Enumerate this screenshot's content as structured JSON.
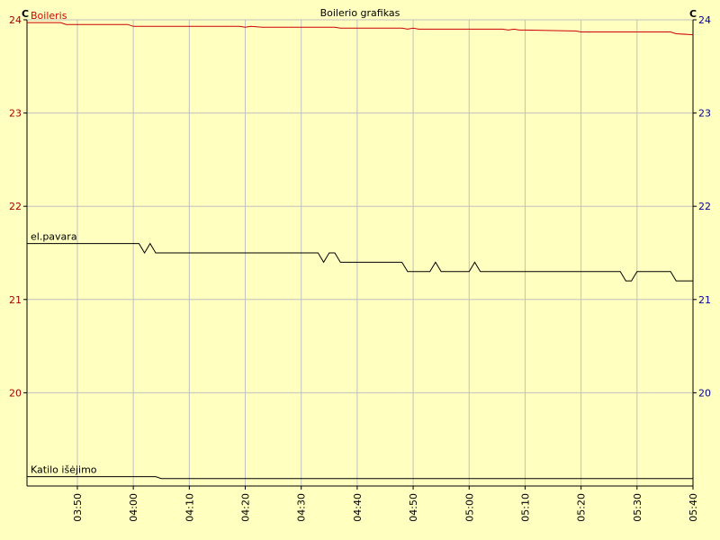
{
  "chart_data": {
    "type": "line",
    "title": "Boilerio grafikas",
    "y_unit_left": "C",
    "y_unit_right": "C",
    "xlim": [
      "03:41",
      "05:40"
    ],
    "xticks": [
      "03:50",
      "04:00",
      "04:10",
      "04:20",
      "04:30",
      "04:40",
      "04:50",
      "05:00",
      "05:10",
      "05:20",
      "05:30",
      "05:40"
    ],
    "ylim": [
      19,
      24
    ],
    "yticks": [
      20,
      21,
      22,
      23,
      24
    ],
    "grid": true,
    "series": [
      {
        "name": "Boileris",
        "color": "#cc0000",
        "x": [
          "03:41",
          "03:47",
          "03:48",
          "03:59",
          "04:00",
          "04:19",
          "04:20",
          "04:21",
          "04:23",
          "04:36",
          "04:37",
          "04:48",
          "04:49",
          "04:50",
          "04:51",
          "05:06",
          "05:07",
          "05:08",
          "05:09",
          "05:10",
          "05:19",
          "05:20",
          "05:36",
          "05:37",
          "05:40"
        ],
        "values": [
          23.97,
          23.97,
          23.95,
          23.95,
          23.93,
          23.93,
          23.92,
          23.93,
          23.92,
          23.92,
          23.91,
          23.91,
          23.9,
          23.91,
          23.9,
          23.9,
          23.89,
          23.9,
          23.89,
          23.89,
          23.88,
          23.87,
          23.87,
          23.85,
          23.84
        ]
      },
      {
        "name": "el.pavara",
        "color": "#000000",
        "x": [
          "03:41",
          "04:01",
          "04:02",
          "04:03",
          "04:04",
          "04:33",
          "04:34",
          "04:35",
          "04:36",
          "04:37",
          "04:48",
          "04:49",
          "04:53",
          "04:54",
          "04:55",
          "05:00",
          "05:01",
          "05:02",
          "05:27",
          "05:28",
          "05:29",
          "05:30",
          "05:36",
          "05:37",
          "05:40"
        ],
        "values": [
          21.6,
          21.6,
          21.5,
          21.6,
          21.5,
          21.5,
          21.4,
          21.5,
          21.5,
          21.4,
          21.4,
          21.3,
          21.3,
          21.4,
          21.3,
          21.3,
          21.4,
          21.3,
          21.3,
          21.2,
          21.2,
          21.3,
          21.3,
          21.2,
          21.2
        ]
      },
      {
        "name": "Katilo išėjimo",
        "color": "#000000",
        "x": [
          "03:41",
          "04:04",
          "04:05",
          "05:40"
        ],
        "values": [
          19.1,
          19.1,
          19.08,
          19.08
        ]
      }
    ]
  }
}
